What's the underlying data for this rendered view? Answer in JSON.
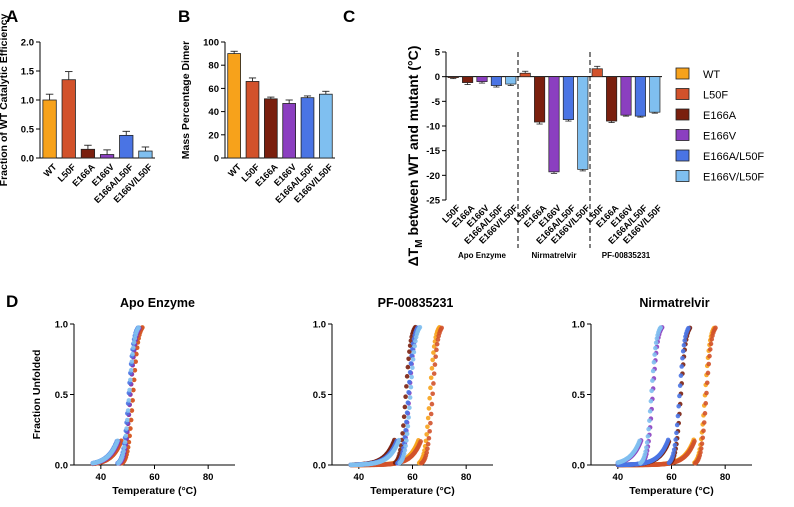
{
  "panels": {
    "a": "A",
    "b": "B",
    "c": "C",
    "d": "D"
  },
  "chart_data": [
    {
      "id": "A",
      "type": "bar",
      "title": "",
      "ylabel": "Fraction of WT Catalytic Efficiency",
      "xlabel": "",
      "categories": [
        "WT",
        "L50F",
        "E166A",
        "E166V",
        "E166A/L50F",
        "E166V/L50F"
      ],
      "values": [
        1.0,
        1.35,
        0.15,
        0.06,
        0.39,
        0.12
      ],
      "errors": [
        0.1,
        0.14,
        0.07,
        0.08,
        0.07,
        0.07
      ],
      "colors": [
        "#F7A21B",
        "#D2522B",
        "#7A1F0E",
        "#8B3FC0",
        "#4A74E4",
        "#7FBFF0"
      ],
      "ylim": [
        0,
        2.0
      ],
      "yticks": [
        "0.0",
        "0.5",
        "1.0",
        "1.5",
        "2.0"
      ]
    },
    {
      "id": "B",
      "type": "bar",
      "title": "",
      "ylabel": "Mass Percentage Dimer",
      "xlabel": "",
      "categories": [
        "WT",
        "L50F",
        "E166A",
        "E166V",
        "E166A/L50F",
        "E166V/L50F"
      ],
      "values": [
        90,
        66,
        51,
        47,
        52,
        55
      ],
      "errors": [
        2,
        3,
        1.5,
        3,
        1.5,
        2.5
      ],
      "colors": [
        "#F7A21B",
        "#D2522B",
        "#7A1F0E",
        "#8B3FC0",
        "#4A74E4",
        "#7FBFF0"
      ],
      "ylim": [
        0,
        100
      ],
      "yticks": [
        "0",
        "20",
        "40",
        "60",
        "80",
        "100"
      ]
    },
    {
      "id": "C",
      "type": "bar",
      "title": "",
      "ylabel": "ΔT",
      "ylabel_sub": "M",
      "ylabel_rest": " between WT and mutant (°C)",
      "ylim": [
        -25,
        5
      ],
      "yticks": [
        "5",
        "0",
        "-5",
        "-10",
        "-15",
        "-20",
        "-25"
      ],
      "groups": [
        {
          "name": "Apo Enzyme",
          "categories": [
            "L50F",
            "E166A",
            "E166V",
            "E166A/L50F",
            "E166V/L50F"
          ],
          "values": [
            -0.2,
            -1.2,
            -1.0,
            -1.8,
            -1.5
          ],
          "errors": [
            0.2,
            0.4,
            0.3,
            0.3,
            0.3
          ]
        },
        {
          "name": "Nirmatrelvir",
          "categories": [
            "L50F",
            "E166A",
            "E166V",
            "E166A/L50F",
            "E166V/L50F"
          ],
          "values": [
            0.7,
            -9.2,
            -19.3,
            -8.7,
            -18.8
          ],
          "errors": [
            0.4,
            0.4,
            0.3,
            0.3,
            0.3
          ]
        },
        {
          "name": "PF-00835231",
          "categories": [
            "L50F",
            "E166A",
            "E166V",
            "E166A/L50F",
            "E166V/L50F"
          ],
          "values": [
            1.6,
            -9.0,
            -7.8,
            -8.0,
            -7.2
          ],
          "errors": [
            0.5,
            0.3,
            0.2,
            0.2,
            0.2
          ]
        }
      ],
      "series_colors": {
        "L50F": "#D2522B",
        "E166A": "#7A1F0E",
        "E166V": "#8B3FC0",
        "E166A/L50F": "#4A74E4",
        "E166V/L50F": "#7FBFF0"
      },
      "legend": [
        {
          "name": "WT",
          "color": "#F7A21B"
        },
        {
          "name": "L50F",
          "color": "#D2522B"
        },
        {
          "name": "E166A",
          "color": "#7A1F0E"
        },
        {
          "name": "E166V",
          "color": "#8B3FC0"
        },
        {
          "name": "E166A/L50F",
          "color": "#4A74E4"
        },
        {
          "name": "E166V/L50F",
          "color": "#7FBFF0"
        }
      ],
      "legend_position": "right"
    },
    {
      "id": "D1",
      "type": "scatter",
      "title": "Apo Enzyme",
      "xlabel": "Temperature (°C)",
      "ylabel": "Fraction Unfolded",
      "xlim": [
        30,
        90
      ],
      "ylim": [
        0,
        1
      ],
      "xticks": [
        "40",
        "60",
        "80"
      ],
      "yticks": [
        "0.0",
        "0.5",
        "1.0"
      ],
      "series": [
        {
          "name": "WT",
          "color": "#F7A21B",
          "tm": 52.0,
          "start": 37
        },
        {
          "name": "L50F",
          "color": "#D2522B",
          "tm": 52.0,
          "start": 37
        },
        {
          "name": "E166A",
          "color": "#7A1F0E",
          "tm": 51.0,
          "start": 37
        },
        {
          "name": "E166V",
          "color": "#8B3FC0",
          "tm": 51.0,
          "start": 37
        },
        {
          "name": "E166A/L50F",
          "color": "#4A74E4",
          "tm": 50.4,
          "start": 37
        },
        {
          "name": "E166V/L50F",
          "color": "#7FBFF0",
          "tm": 50.6,
          "start": 37
        }
      ]
    },
    {
      "id": "D2",
      "type": "scatter",
      "title": "PF-00835231",
      "xlabel": "Temperature (°C)",
      "ylabel": "",
      "xlim": [
        30,
        90
      ],
      "ylim": [
        0,
        1
      ],
      "xticks": [
        "40",
        "60",
        "80"
      ],
      "yticks": [
        "0.0",
        "0.5",
        "1.0"
      ],
      "series": [
        {
          "name": "WT",
          "color": "#F7A21B",
          "tm": 66.5,
          "start": 37
        },
        {
          "name": "L50F",
          "color": "#D2522B",
          "tm": 67.5,
          "start": 37
        },
        {
          "name": "E166A",
          "color": "#7A1F0E",
          "tm": 57.5,
          "start": 37
        },
        {
          "name": "E166V",
          "color": "#8B3FC0",
          "tm": 58.8,
          "start": 37
        },
        {
          "name": "E166A/L50F",
          "color": "#4A74E4",
          "tm": 58.5,
          "start": 37
        },
        {
          "name": "E166V/L50F",
          "color": "#7FBFF0",
          "tm": 59.2,
          "start": 37
        }
      ]
    },
    {
      "id": "D3",
      "type": "scatter",
      "title": "Nirmatrelvir",
      "xlabel": "Temperature (°C)",
      "ylabel": "",
      "xlim": [
        30,
        90
      ],
      "ylim": [
        0,
        1
      ],
      "xticks": [
        "40",
        "60",
        "80"
      ],
      "yticks": [
        "0.0",
        "0.5",
        "1.0"
      ],
      "series": [
        {
          "name": "WT",
          "color": "#F7A21B",
          "tm": 72.5,
          "start": 40
        },
        {
          "name": "L50F",
          "color": "#D2522B",
          "tm": 73.0,
          "start": 40
        },
        {
          "name": "E166A",
          "color": "#7A1F0E",
          "tm": 63.5,
          "start": 40
        },
        {
          "name": "E166V",
          "color": "#8B3FC0",
          "tm": 53.0,
          "start": 40
        },
        {
          "name": "E166A/L50F",
          "color": "#4A74E4",
          "tm": 63.0,
          "start": 40
        },
        {
          "name": "E166V/L50F",
          "color": "#7FBFF0",
          "tm": 52.5,
          "start": 40
        }
      ]
    }
  ]
}
